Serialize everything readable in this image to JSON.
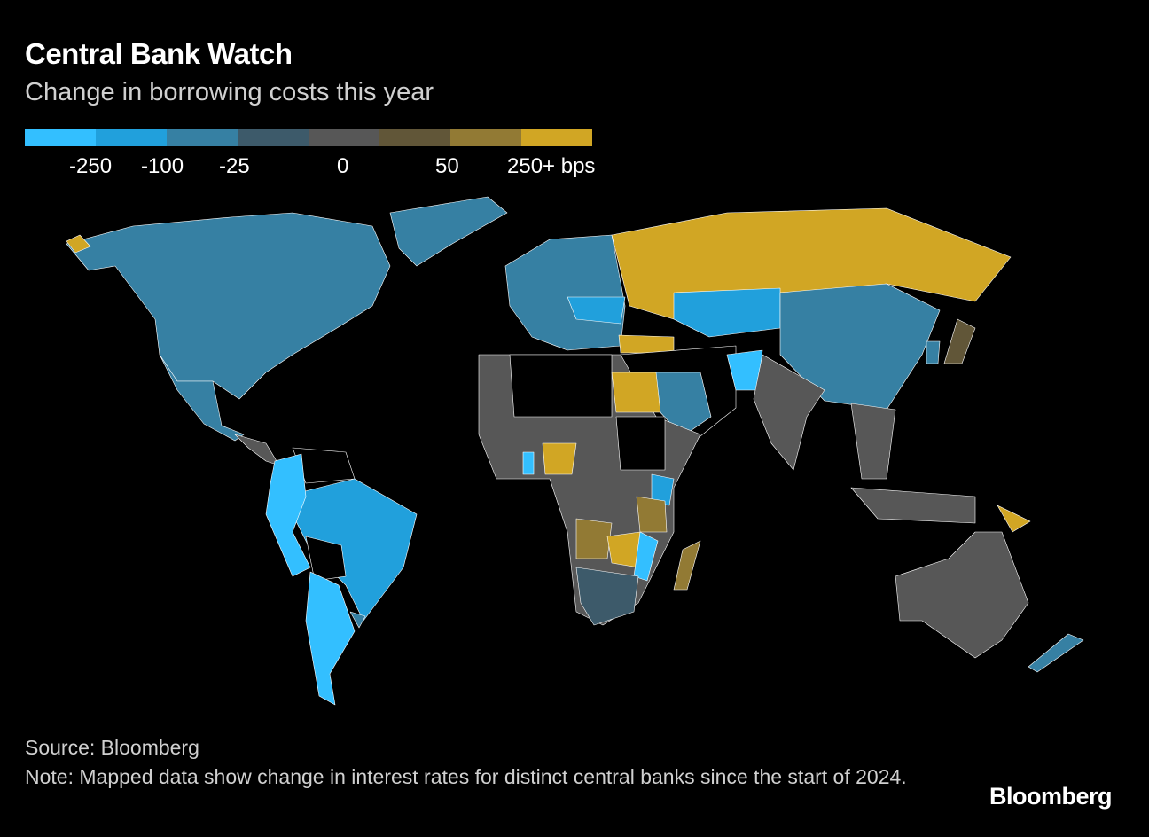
{
  "header": {
    "title": "Central Bank Watch",
    "subtitle": "Change in borrowing costs this year"
  },
  "chart_data": {
    "type": "choropleth",
    "title": "Central Bank Watch",
    "subtitle": "Change in borrowing costs this year",
    "legend": {
      "colors": [
        "#33bfff",
        "#21a0dc",
        "#3680a3",
        "#3d5a6a",
        "#575757",
        "#615638",
        "#927a34",
        "#d1a624"
      ],
      "tick_labels": [
        "-250",
        "-100",
        "-25",
        "0",
        "50",
        "250+ bps"
      ]
    }
  },
  "footer": {
    "source": "Source: Bloomberg",
    "note": "Note: Mapped data show change in interest rates for distinct central banks since the start of 2024.",
    "logo": "Bloomberg"
  }
}
